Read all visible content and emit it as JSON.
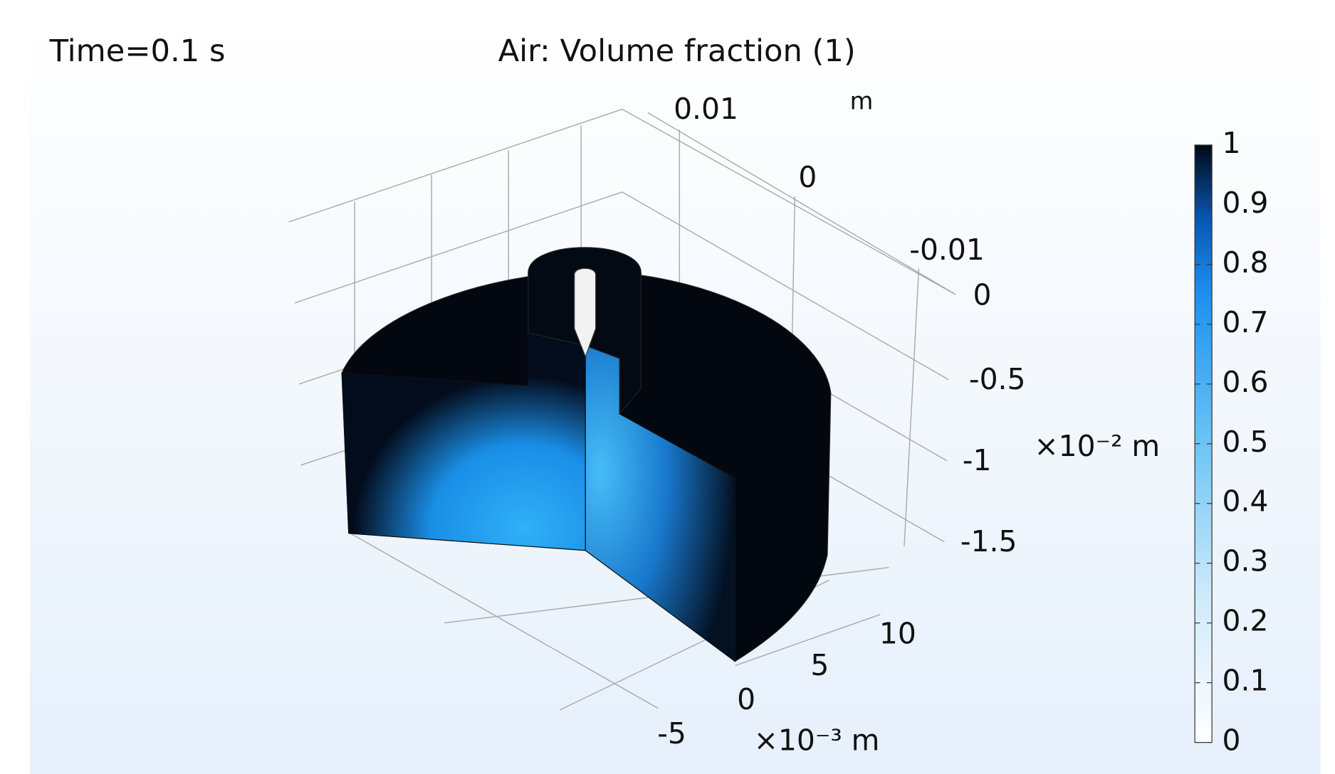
{
  "header": {
    "time": "Time=0.1 s",
    "title": "Air: Volume fraction (1)"
  },
  "axes": {
    "y_labels": [
      "0.01",
      "0",
      "-0.01"
    ],
    "y_unit": "m",
    "z_labels": [
      "0",
      "-0.5",
      "-1",
      "-1.5"
    ],
    "z_unit": "×10⁻² m",
    "x_labels": [
      "10",
      "5",
      "0",
      "-5"
    ],
    "x_unit": "×10⁻³ m"
  },
  "colorbar": {
    "lim": [
      0,
      1
    ],
    "ticks": [
      0,
      {
        "value": 0.1,
        "label": "0.1"
      },
      {
        "value": 0.2,
        "label": "0.2"
      },
      {
        "value": 0.3,
        "label": "0.3"
      },
      {
        "value": 0.4,
        "label": "0.4"
      },
      {
        "value": 0.5,
        "label": "0.5"
      },
      {
        "value": 0.6,
        "label": "0.6"
      },
      {
        "value": 0.7,
        "label": "0.7"
      },
      {
        "value": 0.8,
        "label": "0.8"
      },
      {
        "value": 0.9,
        "label": "0.9"
      },
      1
    ]
  }
}
